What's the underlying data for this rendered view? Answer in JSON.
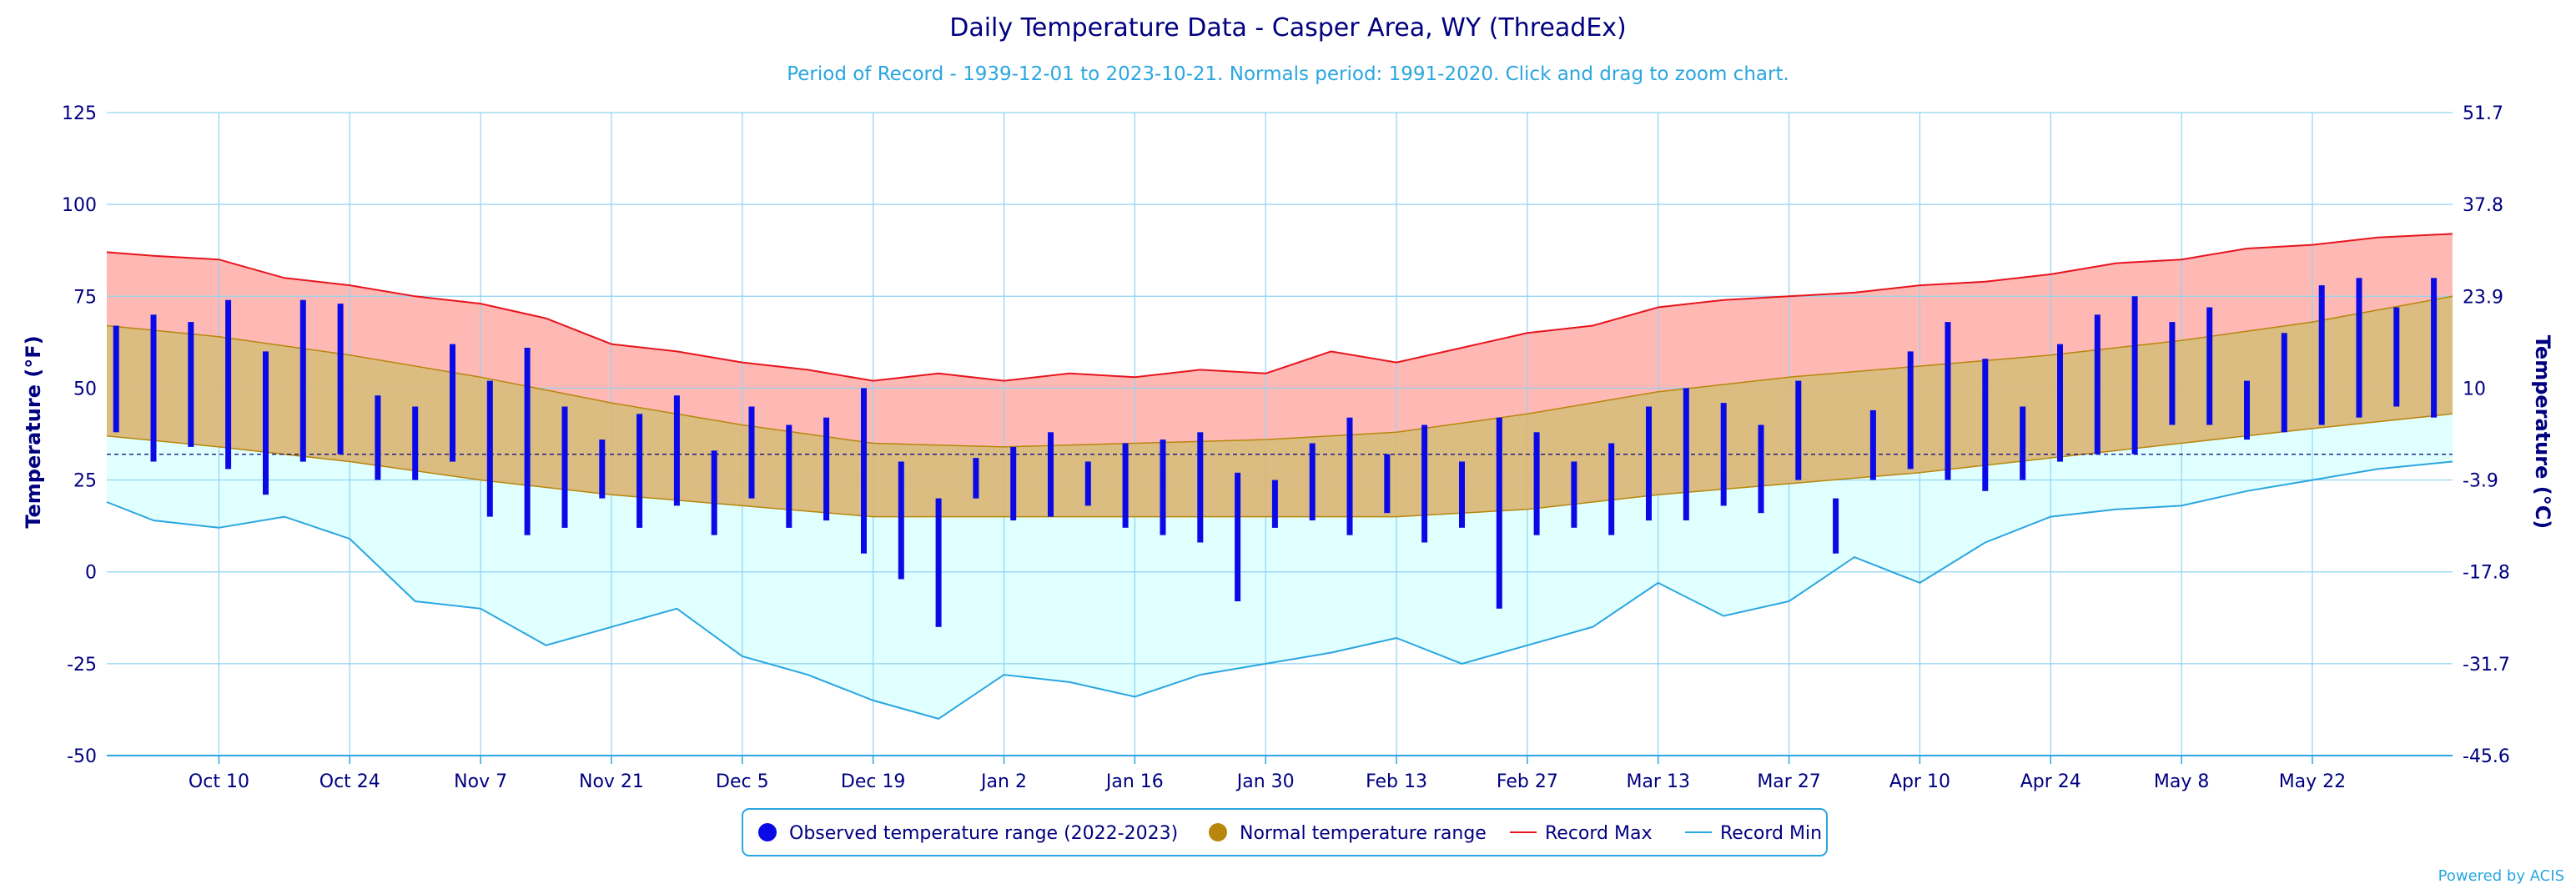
{
  "chart_data": {
    "type": "bar",
    "title": "Daily Temperature Data - Casper Area, WY (ThreadEx)",
    "subtitle": "Period of Record - 1939-12-01 to 2023-10-21. Normals period: 1991-2020. Click and drag to zoom chart.",
    "ylabel": "Temperature (°F)",
    "ylabel_right": "Temperature (°C)",
    "credit": "Powered by ACIS",
    "ylim": [
      -50,
      125
    ],
    "yticks": [
      125,
      100,
      75,
      50,
      25,
      0,
      -25,
      -50
    ],
    "yticks_right": [
      "51.7",
      "37.8",
      "23.9",
      "10",
      "-3.9",
      "-17.8",
      "-31.7",
      "-45.6"
    ],
    "reference_line": 32,
    "grid": true,
    "x_start": "Sep 28",
    "x_end": "Jun 6",
    "x_tick_labels": [
      "Oct 10",
      "Oct 24",
      "Nov 7",
      "Nov 21",
      "Dec 5",
      "Dec 19",
      "Jan 2",
      "Jan 16",
      "Jan 30",
      "Feb 13",
      "Feb 27",
      "Mar 13",
      "Mar 27",
      "Apr 10",
      "Apr 24",
      "May 8",
      "May 22"
    ],
    "legend": {
      "placement": "bottom-center",
      "items": [
        {
          "label": "Observed temperature range (2022-2023)",
          "color": "#0a0ae6",
          "marker": "circle"
        },
        {
          "label": "Normal temperature range",
          "color": "#b8860b",
          "marker": "circle"
        },
        {
          "label": "Record Max",
          "color": "#e8141e",
          "marker": "line"
        },
        {
          "label": "Record Min",
          "color": "#2aa6e0",
          "marker": "line"
        }
      ]
    },
    "colors": {
      "observed": "#0a0ae6",
      "normal_fill": "#d9b87a",
      "normal_line": "#b8860b",
      "record_max_line": "#e8141e",
      "record_max_fill": "#ffb9b5",
      "record_min_line": "#2aa6e0",
      "record_min_fill": "#e0ffff",
      "grid": "#8fd3f0"
    },
    "normal_range": {
      "x": [
        "Sep 28",
        "Oct 10",
        "Oct 24",
        "Nov 7",
        "Nov 21",
        "Dec 5",
        "Dec 19",
        "Jan 2",
        "Jan 16",
        "Jan 30",
        "Feb 13",
        "Feb 27",
        "Mar 13",
        "Mar 27",
        "Apr 10",
        "Apr 24",
        "May 8",
        "May 22",
        "Jun 6"
      ],
      "high": [
        67,
        64,
        59,
        53,
        46,
        40,
        35,
        34,
        35,
        36,
        38,
        43,
        49,
        53,
        56,
        59,
        63,
        68,
        75
      ],
      "low": [
        37,
        34,
        30,
        25,
        21,
        18,
        15,
        15,
        15,
        15,
        15,
        17,
        21,
        24,
        27,
        31,
        35,
        39,
        43
      ]
    },
    "record_max": {
      "x": [
        "Sep 28",
        "Oct 3",
        "Oct 10",
        "Oct 17",
        "Oct 24",
        "Oct 31",
        "Nov 7",
        "Nov 14",
        "Nov 21",
        "Nov 28",
        "Dec 5",
        "Dec 12",
        "Dec 19",
        "Dec 26",
        "Jan 2",
        "Jan 9",
        "Jan 16",
        "Jan 23",
        "Jan 30",
        "Feb 6",
        "Feb 13",
        "Feb 20",
        "Feb 27",
        "Mar 6",
        "Mar 13",
        "Mar 20",
        "Mar 27",
        "Apr 3",
        "Apr 10",
        "Apr 17",
        "Apr 24",
        "May 1",
        "May 8",
        "May 15",
        "May 22",
        "May 29",
        "Jun 6"
      ],
      "y": [
        87,
        86,
        85,
        80,
        78,
        75,
        73,
        69,
        62,
        60,
        57,
        55,
        52,
        54,
        52,
        54,
        53,
        55,
        54,
        60,
        57,
        61,
        65,
        67,
        72,
        74,
        75,
        76,
        78,
        79,
        81,
        84,
        85,
        88,
        89,
        91,
        92
      ]
    },
    "record_min": {
      "x": [
        "Sep 28",
        "Oct 3",
        "Oct 10",
        "Oct 17",
        "Oct 24",
        "Oct 31",
        "Nov 7",
        "Nov 14",
        "Nov 21",
        "Nov 28",
        "Dec 5",
        "Dec 12",
        "Dec 19",
        "Dec 26",
        "Jan 2",
        "Jan 9",
        "Jan 16",
        "Jan 23",
        "Jan 30",
        "Feb 6",
        "Feb 13",
        "Feb 20",
        "Feb 27",
        "Mar 6",
        "Mar 13",
        "Mar 20",
        "Mar 27",
        "Apr 3",
        "Apr 10",
        "Apr 17",
        "Apr 24",
        "May 1",
        "May 8",
        "May 15",
        "May 22",
        "May 29",
        "Jun 6"
      ],
      "y": [
        19,
        14,
        12,
        15,
        9,
        -8,
        -10,
        -20,
        -15,
        -10,
        -23,
        -28,
        -35,
        -40,
        -28,
        -30,
        -34,
        -28,
        -25,
        -22,
        -18,
        -25,
        -20,
        -15,
        -3,
        -12,
        -8,
        4,
        -3,
        8,
        15,
        17,
        18,
        22,
        25,
        28,
        30
      ]
    },
    "observed_range": {
      "x": [
        "Sep 29",
        "Oct 3",
        "Oct 7",
        "Oct 11",
        "Oct 15",
        "Oct 19",
        "Oct 23",
        "Oct 27",
        "Oct 31",
        "Nov 4",
        "Nov 8",
        "Nov 12",
        "Nov 16",
        "Nov 20",
        "Nov 24",
        "Nov 28",
        "Dec 2",
        "Dec 6",
        "Dec 10",
        "Dec 14",
        "Dec 18",
        "Dec 22",
        "Dec 26",
        "Dec 30",
        "Jan 3",
        "Jan 7",
        "Jan 11",
        "Jan 15",
        "Jan 19",
        "Jan 23",
        "Jan 27",
        "Jan 31",
        "Feb 4",
        "Feb 8",
        "Feb 12",
        "Feb 16",
        "Feb 20",
        "Feb 24",
        "Feb 28",
        "Mar 4",
        "Mar 8",
        "Mar 12",
        "Mar 16",
        "Mar 20",
        "Mar 24",
        "Mar 28",
        "Apr 1",
        "Apr 5",
        "Apr 9",
        "Apr 13",
        "Apr 17",
        "Apr 21",
        "Apr 25",
        "Apr 29",
        "May 3",
        "May 7",
        "May 11",
        "May 15",
        "May 19",
        "May 23",
        "May 27",
        "May 31",
        "Jun 4"
      ],
      "high": [
        67,
        70,
        68,
        74,
        60,
        74,
        73,
        48,
        45,
        62,
        52,
        61,
        45,
        36,
        43,
        48,
        33,
        45,
        40,
        42,
        50,
        30,
        20,
        31,
        34,
        38,
        30,
        35,
        36,
        38,
        27,
        25,
        35,
        42,
        32,
        40,
        30,
        42,
        38,
        30,
        35,
        45,
        50,
        46,
        40,
        52,
        20,
        44,
        60,
        68,
        58,
        45,
        62,
        70,
        75,
        68,
        72,
        52,
        65,
        78,
        80,
        72,
        80
      ],
      "low": [
        38,
        30,
        34,
        28,
        21,
        30,
        32,
        25,
        25,
        30,
        15,
        10,
        12,
        20,
        12,
        18,
        10,
        20,
        12,
        14,
        5,
        -2,
        -15,
        20,
        14,
        15,
        18,
        12,
        10,
        8,
        -8,
        12,
        14,
        10,
        16,
        8,
        12,
        -10,
        10,
        12,
        10,
        14,
        14,
        18,
        16,
        25,
        5,
        25,
        28,
        25,
        22,
        25,
        30,
        32,
        32,
        40,
        40,
        36,
        38,
        40,
        42,
        45,
        42
      ]
    }
  }
}
